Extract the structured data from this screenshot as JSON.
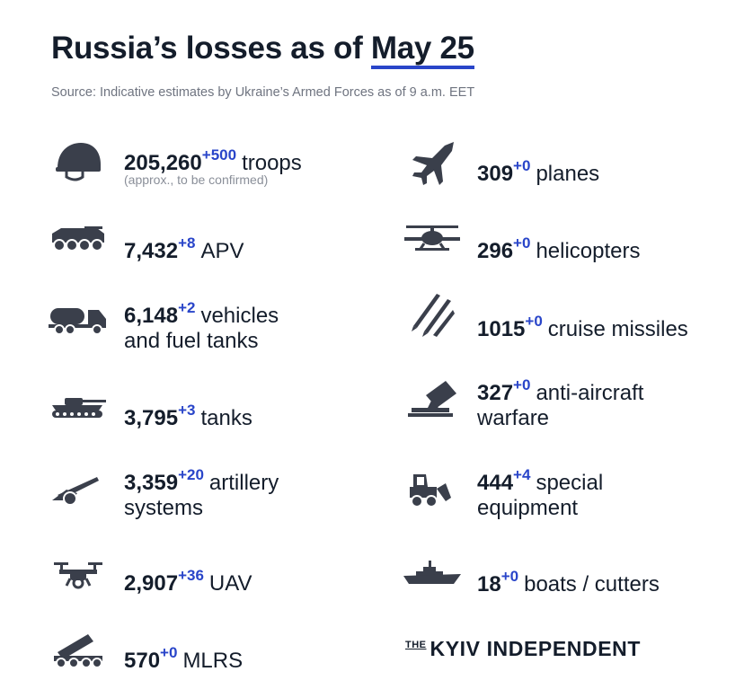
{
  "title": {
    "prefix": "Russia’s losses as of ",
    "date": "May 25"
  },
  "source": "Source: Indicative estimates by Ukraine’s Armed Forces as of 9 a.m. EET",
  "left_items": [
    {
      "icon": "helmet-icon",
      "value": "205,260",
      "delta": "+500",
      "label_line1": "troops",
      "label_line2": "",
      "note": "(approx., to be confirmed)"
    },
    {
      "icon": "apv-icon",
      "value": "7,432",
      "delta": "+8",
      "label_line1": "APV",
      "label_line2": ""
    },
    {
      "icon": "fuel-truck-icon",
      "value": "6,148",
      "delta": "+2",
      "label_line1": "vehicles",
      "label_line2": "and fuel tanks"
    },
    {
      "icon": "tank-icon",
      "value": "3,795",
      "delta": "+3",
      "label_line1": "tanks",
      "label_line2": ""
    },
    {
      "icon": "artillery-icon",
      "value": "3,359",
      "delta": "+20",
      "label_line1": "artillery",
      "label_line2": "systems"
    },
    {
      "icon": "drone-icon",
      "value": "2,907",
      "delta": "+36",
      "label_line1": "UAV",
      "label_line2": ""
    },
    {
      "icon": "mlrs-icon",
      "value": "570",
      "delta": "+0",
      "label_line1": "MLRS",
      "label_line2": ""
    }
  ],
  "right_items": [
    {
      "icon": "plane-icon",
      "value": "309",
      "delta": "+0",
      "label_line1": "planes",
      "label_line2": ""
    },
    {
      "icon": "helicopter-icon",
      "value": "296",
      "delta": "+0",
      "label_line1": "helicopters",
      "label_line2": ""
    },
    {
      "icon": "missiles-icon",
      "value": "1015",
      "delta": "+0",
      "label_line1": "cruise missiles",
      "label_line2": ""
    },
    {
      "icon": "anti-aircraft-icon",
      "value": "327",
      "delta": "+0",
      "label_line1": "anti-aircraft",
      "label_line2": "warfare"
    },
    {
      "icon": "bulldozer-icon",
      "value": "444",
      "delta": "+4",
      "label_line1": "special",
      "label_line2": "equipment"
    },
    {
      "icon": "boat-icon",
      "value": "18",
      "delta": "+0",
      "label_line1": "boats / cutters",
      "label_line2": ""
    }
  ],
  "brand": {
    "the": "THE",
    "name": "KYIV INDEPENDENT"
  },
  "colors": {
    "accent": "#2945c9",
    "text": "#141d2b",
    "icon": "#3a3f4b",
    "muted": "#6f7480"
  }
}
